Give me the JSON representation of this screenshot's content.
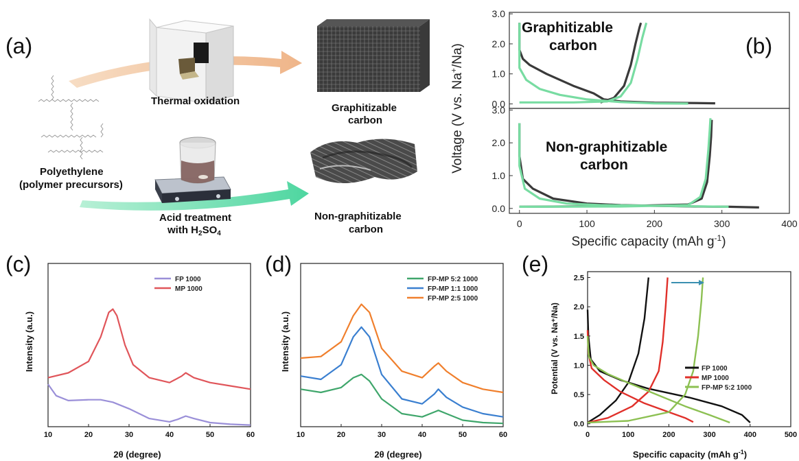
{
  "panel_a": {
    "label": "(a)",
    "step_top": "Thermal oxidation",
    "product_top": [
      "Graphitizable",
      "carbon"
    ],
    "precursor": [
      "Polyethylene",
      "(polymer precursors)"
    ],
    "step_bottom_line1": "Acid treatment",
    "step_bottom_line2_prefix": "with H",
    "step_bottom_sub1": "2",
    "step_bottom_mid": "SO",
    "step_bottom_sub2": "4",
    "product_bottom": [
      "Non-graphitizable",
      "carbon"
    ],
    "colors": {
      "arrow_top": "#f2c49b",
      "arrow_bottom": "#6fdcb0"
    }
  },
  "chart_data": [
    {
      "id": "b",
      "type": "line",
      "panel_label": "(b)",
      "xlabel_main": "Specific capacity (mAh g",
      "xlabel_sup": "-1",
      "xlabel_end": ")",
      "ylabel_main": "Voltage (V vs. Na",
      "ylabel_sup": "+",
      "ylabel_end": "/Na)",
      "xlim": [
        -15,
        400
      ],
      "xticks": [
        0,
        100,
        200,
        300,
        400
      ],
      "yticks": [
        "0.0",
        "1.0",
        "2.0",
        "3.0"
      ],
      "ylim": [
        -0.3,
        3.1
      ],
      "subplots": [
        {
          "annotation": [
            "Graphitizable",
            "carbon"
          ],
          "series": [
            {
              "color": "#3a3a3a",
              "points": [
                [
                  0,
                  2.7
                ],
                [
                  0,
                  1.8
                ],
                [
                  5,
                  1.5
                ],
                [
                  15,
                  1.3
                ],
                [
                  40,
                  1.0
                ],
                [
                  80,
                  0.6
                ],
                [
                  110,
                  0.35
                ],
                [
                  125,
                  0.15
                ],
                [
                  150,
                  0.08
                ],
                [
                  200,
                  0.04
                ],
                [
                  250,
                  0.03
                ],
                [
                  290,
                  0.02
                ]
              ]
            },
            {
              "color": "#3a3a3a",
              "points": [
                [
                  120,
                  0.05
                ],
                [
                  140,
                  0.2
                ],
                [
                  155,
                  0.6
                ],
                [
                  165,
                  1.3
                ],
                [
                  172,
                  2.0
                ],
                [
                  178,
                  2.55
                ],
                [
                  180,
                  2.7
                ]
              ]
            },
            {
              "color": "#78dca2",
              "points": [
                [
                  0,
                  2.7
                ],
                [
                  0,
                  1.2
                ],
                [
                  10,
                  0.8
                ],
                [
                  30,
                  0.5
                ],
                [
                  60,
                  0.3
                ],
                [
                  100,
                  0.15
                ],
                [
                  150,
                  0.06
                ],
                [
                  200,
                  0.02
                ],
                [
                  250,
                  0.01
                ]
              ]
            },
            {
              "color": "#78dca2",
              "points": [
                [
                  0,
                  0.05
                ],
                [
                  80,
                  0.05
                ],
                [
                  130,
                  0.08
                ],
                [
                  150,
                  0.25
                ],
                [
                  165,
                  0.7
                ],
                [
                  175,
                  1.5
                ],
                [
                  182,
                  2.2
                ],
                [
                  188,
                  2.7
                ]
              ]
            }
          ]
        },
        {
          "annotation": [
            "Non-graphitizable",
            "carbon"
          ],
          "series": [
            {
              "color": "#3a3a3a",
              "points": [
                [
                  0,
                  2.6
                ],
                [
                  0,
                  1.6
                ],
                [
                  5,
                  0.9
                ],
                [
                  20,
                  0.6
                ],
                [
                  50,
                  0.3
                ],
                [
                  100,
                  0.15
                ],
                [
                  150,
                  0.1
                ],
                [
                  200,
                  0.08
                ],
                [
                  260,
                  0.06
                ],
                [
                  310,
                  0.05
                ],
                [
                  355,
                  0.03
                ]
              ]
            },
            {
              "color": "#3a3a3a",
              "points": [
                [
                  0,
                  0.05
                ],
                [
                  150,
                  0.07
                ],
                [
                  250,
                  0.12
                ],
                [
                  270,
                  0.3
                ],
                [
                  278,
                  0.8
                ],
                [
                  282,
                  1.6
                ],
                [
                  284,
                  2.2
                ],
                [
                  285,
                  2.7
                ]
              ]
            },
            {
              "color": "#78dca2",
              "points": [
                [
                  0,
                  2.6
                ],
                [
                  0,
                  1.3
                ],
                [
                  8,
                  0.6
                ],
                [
                  30,
                  0.3
                ],
                [
                  70,
                  0.15
                ],
                [
                  120,
                  0.1
                ],
                [
                  200,
                  0.08
                ],
                [
                  310,
                  0.05
                ]
              ]
            },
            {
              "color": "#78dca2",
              "points": [
                [
                  0,
                  0.05
                ],
                [
                  150,
                  0.06
                ],
                [
                  250,
                  0.1
                ],
                [
                  268,
                  0.35
                ],
                [
                  276,
                  0.9
                ],
                [
                  280,
                  1.8
                ],
                [
                  282,
                  2.4
                ],
                [
                  283,
                  2.75
                ]
              ]
            }
          ]
        }
      ]
    },
    {
      "id": "c",
      "type": "line",
      "panel_label": "(c)",
      "xlabel": "2θ (degree)",
      "ylabel": "Intensity (a.u.)",
      "xlim": [
        10,
        60
      ],
      "ylim": [
        0,
        1
      ],
      "xticks": [
        10,
        20,
        30,
        40,
        50,
        60
      ],
      "legend_position": "top-right",
      "series": [
        {
          "name": "FP 1000",
          "color": "#9a8fd8",
          "points": [
            [
              10,
              0.26
            ],
            [
              12,
              0.19
            ],
            [
              15,
              0.16
            ],
            [
              20,
              0.165
            ],
            [
              23,
              0.165
            ],
            [
              26,
              0.15
            ],
            [
              30,
              0.11
            ],
            [
              35,
              0.05
            ],
            [
              40,
              0.03
            ],
            [
              42,
              0.045
            ],
            [
              44,
              0.065
            ],
            [
              46,
              0.05
            ],
            [
              50,
              0.025
            ],
            [
              55,
              0.015
            ],
            [
              60,
              0.01
            ]
          ]
        },
        {
          "name": "MP 1000",
          "color": "#e0555a",
          "points": [
            [
              10,
              0.3
            ],
            [
              15,
              0.33
            ],
            [
              20,
              0.4
            ],
            [
              23,
              0.55
            ],
            [
              25,
              0.7
            ],
            [
              26,
              0.72
            ],
            [
              27,
              0.68
            ],
            [
              29,
              0.5
            ],
            [
              31,
              0.38
            ],
            [
              35,
              0.3
            ],
            [
              40,
              0.27
            ],
            [
              43,
              0.31
            ],
            [
              44,
              0.33
            ],
            [
              46,
              0.3
            ],
            [
              50,
              0.27
            ],
            [
              55,
              0.25
            ],
            [
              60,
              0.23
            ]
          ]
        }
      ]
    },
    {
      "id": "d",
      "type": "line",
      "panel_label": "(d)",
      "xlabel": "2θ (degree)",
      "ylabel": "Intensity (a.u.)",
      "xlim": [
        10,
        60
      ],
      "ylim": [
        0,
        1
      ],
      "xticks": [
        10,
        20,
        30,
        40,
        50,
        60
      ],
      "legend_position": "top-right",
      "series": [
        {
          "name": "FP-MP 5:2 1000",
          "color": "#3fa66b",
          "points": [
            [
              10,
              0.23
            ],
            [
              15,
              0.21
            ],
            [
              20,
              0.24
            ],
            [
              23,
              0.3
            ],
            [
              25,
              0.32
            ],
            [
              27,
              0.28
            ],
            [
              30,
              0.17
            ],
            [
              35,
              0.08
            ],
            [
              40,
              0.06
            ],
            [
              43,
              0.09
            ],
            [
              44,
              0.1
            ],
            [
              46,
              0.08
            ],
            [
              50,
              0.04
            ],
            [
              55,
              0.025
            ],
            [
              60,
              0.02
            ]
          ]
        },
        {
          "name": "FP-MP 1:1 1000",
          "color": "#3a7fd0",
          "points": [
            [
              10,
              0.31
            ],
            [
              15,
              0.29
            ],
            [
              20,
              0.38
            ],
            [
              23,
              0.55
            ],
            [
              25,
              0.61
            ],
            [
              27,
              0.55
            ],
            [
              30,
              0.32
            ],
            [
              35,
              0.17
            ],
            [
              40,
              0.14
            ],
            [
              43,
              0.2
            ],
            [
              44,
              0.23
            ],
            [
              46,
              0.18
            ],
            [
              50,
              0.12
            ],
            [
              55,
              0.08
            ],
            [
              60,
              0.06
            ]
          ]
        },
        {
          "name": "FP-MP 2:5 1000",
          "color": "#f07f2c",
          "points": [
            [
              10,
              0.42
            ],
            [
              15,
              0.43
            ],
            [
              20,
              0.52
            ],
            [
              23,
              0.68
            ],
            [
              25,
              0.75
            ],
            [
              27,
              0.7
            ],
            [
              30,
              0.48
            ],
            [
              35,
              0.34
            ],
            [
              40,
              0.3
            ],
            [
              43,
              0.37
            ],
            [
              44,
              0.39
            ],
            [
              46,
              0.34
            ],
            [
              50,
              0.27
            ],
            [
              55,
              0.23
            ],
            [
              60,
              0.21
            ]
          ]
        }
      ]
    },
    {
      "id": "e",
      "type": "line",
      "panel_label": "(e)",
      "xlabel_main": "Specific capacity (mAh g",
      "xlabel_sup": "-1",
      "xlabel_end": ")",
      "ylabel": "Potential (V vs. Na⁺/Na)",
      "xlim": [
        0,
        500
      ],
      "ylim": [
        -0.05,
        2.6
      ],
      "xticks": [
        0,
        100,
        200,
        300,
        400,
        500
      ],
      "yticks": [
        "0.0",
        "0.5",
        "1.0",
        "1.5",
        "2.0",
        "2.5"
      ],
      "legend_position": "bottom-right",
      "series": [
        {
          "name": "FP 1000",
          "color": "#111111",
          "points": [
            [
              0,
              1.95
            ],
            [
              2,
              1.5
            ],
            [
              8,
              1.1
            ],
            [
              30,
              0.9
            ],
            [
              80,
              0.75
            ],
            [
              150,
              0.6
            ],
            [
              250,
              0.45
            ],
            [
              330,
              0.3
            ],
            [
              380,
              0.15
            ],
            [
              400,
              0.02
            ]
          ]
        },
        {
          "name": "",
          "color": "#111111",
          "points": [
            [
              0,
              0.02
            ],
            [
              30,
              0.15
            ],
            [
              70,
              0.4
            ],
            [
              100,
              0.7
            ],
            [
              125,
              1.2
            ],
            [
              140,
              1.8
            ],
            [
              150,
              2.5
            ]
          ]
        },
        {
          "name": "MP 1000",
          "color": "#e0302a",
          "points": [
            [
              0,
              1.6
            ],
            [
              2,
              1.2
            ],
            [
              10,
              0.95
            ],
            [
              40,
              0.75
            ],
            [
              80,
              0.55
            ],
            [
              140,
              0.35
            ],
            [
              200,
              0.2
            ],
            [
              240,
              0.1
            ],
            [
              260,
              0.03
            ]
          ]
        },
        {
          "name": "",
          "color": "#e0302a",
          "points": [
            [
              0,
              0.02
            ],
            [
              50,
              0.1
            ],
            [
              110,
              0.3
            ],
            [
              150,
              0.55
            ],
            [
              175,
              0.9
            ],
            [
              185,
              1.4
            ],
            [
              192,
              2.0
            ],
            [
              197,
              2.5
            ]
          ]
        },
        {
          "name": "FP-MP 5:2 1000",
          "color": "#8cc052",
          "points": [
            [
              0,
              1.5
            ],
            [
              3,
              1.15
            ],
            [
              15,
              1.0
            ],
            [
              50,
              0.85
            ],
            [
              100,
              0.7
            ],
            [
              170,
              0.5
            ],
            [
              240,
              0.3
            ],
            [
              300,
              0.15
            ],
            [
              350,
              0.02
            ]
          ]
        },
        {
          "name": "",
          "color": "#8cc052",
          "points": [
            [
              0,
              0.02
            ],
            [
              100,
              0.05
            ],
            [
              200,
              0.2
            ],
            [
              240,
              0.5
            ],
            [
              260,
              0.9
            ],
            [
              272,
              1.5
            ],
            [
              280,
              2.1
            ],
            [
              284,
              2.5
            ]
          ]
        }
      ]
    }
  ]
}
